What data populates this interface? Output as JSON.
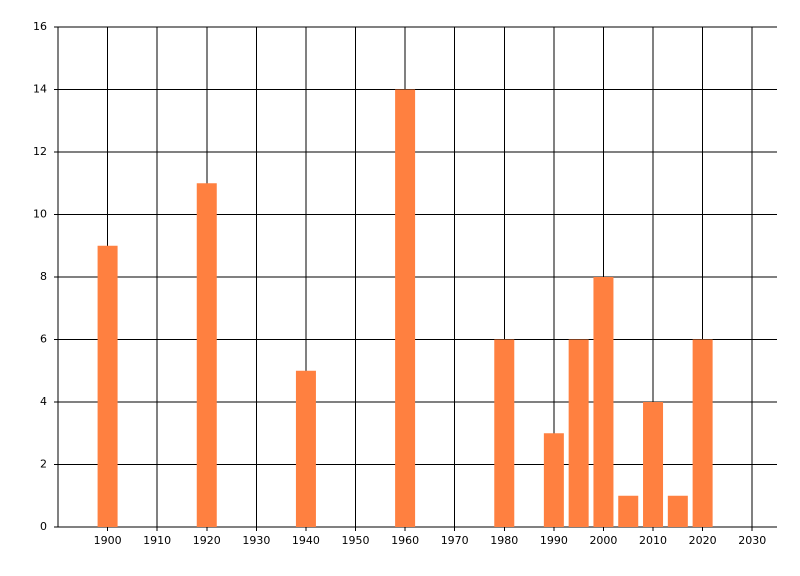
{
  "chart_data": {
    "type": "bar",
    "x": [
      1900,
      1920,
      1940,
      1960,
      1980,
      1990,
      1995,
      2000,
      2005,
      2010,
      2015,
      2020
    ],
    "values": [
      9,
      11,
      5,
      14,
      6,
      3,
      6,
      8,
      1,
      4,
      1,
      6
    ],
    "color": "#ff8040",
    "xlim": [
      1890,
      2035
    ],
    "xticks": [
      1900,
      1910,
      1920,
      1930,
      1940,
      1950,
      1960,
      1970,
      1980,
      1990,
      2000,
      2010,
      2020,
      2030
    ],
    "ylim": [
      0,
      16
    ],
    "yticks": [
      0,
      2,
      4,
      6,
      8,
      10,
      12,
      14,
      16
    ],
    "grid": true
  }
}
